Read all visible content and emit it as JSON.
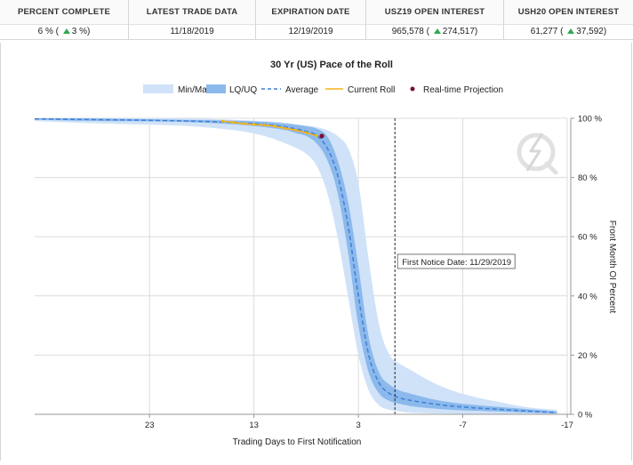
{
  "stats": [
    {
      "label": "PERCENT COMPLETE",
      "value": "6 %",
      "change": "3 %"
    },
    {
      "label": "LATEST TRADE DATA",
      "value": "11/18/2019"
    },
    {
      "label": "EXPIRATION DATE",
      "value": "12/19/2019"
    },
    {
      "label": "USZ19 OPEN INTEREST",
      "value": "965,578",
      "change": "274,517"
    },
    {
      "label": "USH20 OPEN INTEREST",
      "value": "61,277",
      "change": "37,592"
    }
  ],
  "colors": {
    "minmax": "#cfe2f8",
    "lquq": "#8cb9ec",
    "average": "#3f7fd6",
    "current": "#f2b41a",
    "projection": "#7a1030",
    "grid": "#dcdcdc"
  },
  "chart_data": {
    "type": "area",
    "title": "30 Yr (US) Pace of the Roll",
    "xlabel": "Trading Days to First Notification",
    "ylabel": "Front Month OI Percent",
    "xlim": [
      34,
      -17
    ],
    "ylim": [
      0,
      100
    ],
    "x_ticks": [
      23,
      13,
      3,
      -7,
      -17
    ],
    "y_ticks": [
      0,
      20,
      40,
      60,
      80,
      100
    ],
    "x_tick_labels": [
      "23",
      "13",
      "3",
      "-7",
      "-17"
    ],
    "y_tick_labels": [
      "0 %",
      "20 %",
      "40 %",
      "60 %",
      "80 %",
      "100 %"
    ],
    "grid": true,
    "legend_position": "top",
    "legend": [
      "Min/Max",
      "LQ/UQ",
      "Average",
      "Current Roll",
      "Real-time Projection"
    ],
    "annotation": {
      "x": -0.5,
      "label": "First Notice Date: 11/29/2019"
    },
    "series": [
      {
        "name": "Min/Max",
        "x": [
          34,
          30,
          25,
          20,
          15,
          12,
          10,
          9,
          8,
          7,
          6,
          5,
          4,
          3,
          2,
          1,
          0,
          -1,
          -2,
          -4,
          -6,
          -8,
          -10,
          -13,
          -16
        ],
        "lower": [
          99,
          98.5,
          98,
          97.5,
          96,
          94,
          91.5,
          90,
          88,
          84,
          75,
          60,
          40,
          20,
          8,
          3,
          1.5,
          1,
          0.5,
          0.3,
          0.2,
          0.1,
          0.1,
          0,
          0
        ],
        "upper": [
          100,
          100,
          100,
          100,
          99.5,
          99,
          98.5,
          98,
          97.5,
          97,
          96,
          94,
          90,
          78,
          52,
          30,
          20,
          17,
          15,
          11,
          8,
          6,
          4.5,
          2.5,
          1.5
        ]
      },
      {
        "name": "LQ/UQ",
        "x": [
          34,
          30,
          25,
          20,
          15,
          12,
          10,
          9,
          8,
          7,
          6,
          5,
          4,
          3,
          2,
          1,
          0,
          -1,
          -2,
          -4,
          -6,
          -8,
          -10,
          -13,
          -16
        ],
        "lower": [
          99.5,
          99.2,
          99,
          98.8,
          98,
          97,
          96,
          95,
          94,
          91.5,
          86,
          75,
          55,
          30,
          14,
          7,
          4.5,
          3.5,
          2.8,
          2,
          1.5,
          1.2,
          1,
          0.6,
          0.3
        ],
        "upper": [
          100,
          100,
          99.8,
          99.5,
          99.2,
          98.8,
          98.2,
          97.8,
          97.3,
          96.5,
          94,
          86,
          72,
          50,
          26,
          14,
          10,
          8,
          7,
          5.2,
          4,
          3.2,
          2.6,
          1.8,
          1
        ]
      },
      {
        "name": "Average",
        "x": [
          34,
          30,
          25,
          20,
          15,
          12,
          10,
          9,
          8,
          7,
          6,
          5,
          4,
          3,
          2,
          1,
          0,
          -1,
          -2,
          -4,
          -6,
          -8,
          -10,
          -13,
          -16
        ],
        "y": [
          99.8,
          99.6,
          99.4,
          99.1,
          98.6,
          97.9,
          97.1,
          96.4,
          95.6,
          94.2,
          90,
          81,
          64,
          40,
          20,
          10.5,
          7,
          5.5,
          4.7,
          3.6,
          2.8,
          2.2,
          1.8,
          1.1,
          0.6
        ]
      },
      {
        "name": "Current Roll",
        "x": [
          16,
          15,
          14,
          13,
          12,
          11,
          10,
          9,
          8,
          7
        ],
        "y": [
          99,
          98.6,
          98.2,
          97.9,
          97.7,
          97.3,
          96.6,
          96,
          95.1,
          94.1
        ]
      },
      {
        "name": "Real-time Projection",
        "x": [
          6.5
        ],
        "y": [
          94
        ]
      }
    ]
  }
}
